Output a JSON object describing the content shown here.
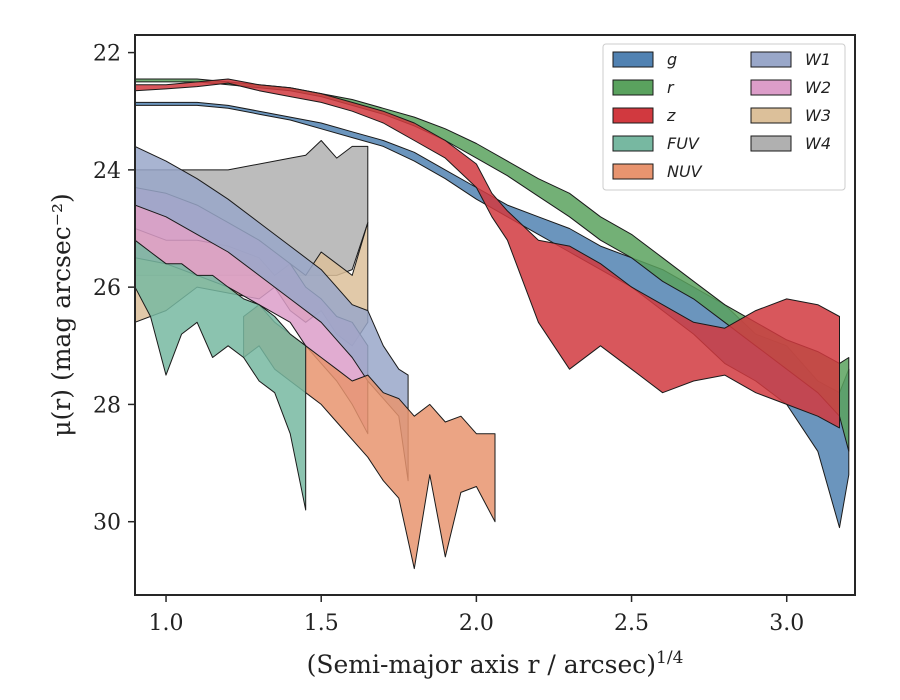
{
  "chart_data": {
    "type": "area",
    "xlabel": "(Semi-major axis r / arcsec)",
    "xlabel_power": "1/4",
    "ylabel": "μ(r) (mag arcsec⁻²)",
    "xlim": [
      0.9,
      3.22
    ],
    "ylim": [
      31.25,
      21.7
    ],
    "y_inverted": true,
    "xticks": [
      1.0,
      1.5,
      2.0,
      2.5,
      3.0
    ],
    "xtick_labels": [
      "1.0",
      "1.5",
      "2.0",
      "2.5",
      "3.0"
    ],
    "yticks": [
      22,
      24,
      26,
      28,
      30
    ],
    "ytick_labels": [
      "22",
      "24",
      "26",
      "28",
      "30"
    ],
    "legend_position": "top-right",
    "legend_columns": 2,
    "series": [
      {
        "name": "W4",
        "color": "#b0b0b0",
        "x": [
          0.9,
          1.0,
          1.2,
          1.4,
          1.45,
          1.5,
          1.55,
          1.6,
          1.65
        ],
        "y_upper": [
          24.0,
          24.0,
          24.0,
          23.8,
          23.75,
          23.5,
          23.8,
          23.6,
          23.6
        ],
        "y_lower": [
          25.8,
          25.8,
          25.8,
          25.8,
          25.8,
          25.8,
          25.8,
          25.7,
          24.9
        ]
      },
      {
        "name": "W3",
        "color": "#dcc09a",
        "x": [
          0.9,
          1.0,
          1.1,
          1.2,
          1.3,
          1.35,
          1.4,
          1.45,
          1.5,
          1.55,
          1.6,
          1.65
        ],
        "y_upper": [
          25.0,
          25.2,
          25.2,
          25.3,
          25.5,
          25.8,
          25.6,
          25.8,
          25.4,
          25.6,
          25.8,
          24.9
        ],
        "y_lower": [
          26.6,
          26.4,
          26.0,
          26.1,
          26.2,
          26.0,
          26.4,
          26.6,
          26.4,
          26.8,
          27.0,
          26.6
        ]
      },
      {
        "name": "W2",
        "color": "#dc9dc9",
        "x": [
          0.9,
          1.0,
          1.1,
          1.2,
          1.3,
          1.4,
          1.45,
          1.5,
          1.55,
          1.6,
          1.65
        ],
        "y_upper": [
          24.3,
          24.4,
          24.6,
          24.9,
          25.2,
          25.6,
          26.0,
          26.2,
          26.5,
          26.6,
          27.0
        ],
        "y_lower": [
          25.5,
          25.6,
          25.8,
          26.0,
          26.3,
          26.6,
          27.0,
          27.3,
          27.6,
          28.0,
          28.5
        ]
      },
      {
        "name": "W1",
        "color": "#99a7c9",
        "x": [
          0.9,
          1.0,
          1.1,
          1.2,
          1.3,
          1.4,
          1.5,
          1.55,
          1.6,
          1.65,
          1.7,
          1.75,
          1.78
        ],
        "y_upper": [
          23.6,
          23.85,
          24.15,
          24.5,
          24.9,
          25.3,
          25.7,
          26.0,
          26.3,
          26.4,
          27.0,
          27.4,
          27.5
        ],
        "y_lower": [
          24.6,
          24.8,
          25.1,
          25.4,
          25.8,
          26.2,
          26.6,
          26.9,
          27.2,
          27.6,
          27.9,
          28.2,
          29.3
        ]
      },
      {
        "name": "NUV",
        "color": "#e8946f",
        "x": [
          1.25,
          1.3,
          1.35,
          1.4,
          1.45,
          1.5,
          1.55,
          1.6,
          1.65,
          1.7,
          1.75,
          1.8,
          1.85,
          1.9,
          1.95,
          2.0,
          2.06
        ],
        "y_upper": [
          26.5,
          26.3,
          26.6,
          26.8,
          27.0,
          27.2,
          27.4,
          27.6,
          27.5,
          27.8,
          27.9,
          28.2,
          28.0,
          28.3,
          28.2,
          28.5,
          28.5
        ],
        "y_lower": [
          27.2,
          27.0,
          27.4,
          27.6,
          27.8,
          28.0,
          28.3,
          28.6,
          28.9,
          29.3,
          29.6,
          30.8,
          29.2,
          30.6,
          29.5,
          29.4,
          30.0
        ]
      },
      {
        "name": "FUV",
        "color": "#77b8a1",
        "x": [
          0.9,
          0.95,
          1.0,
          1.05,
          1.1,
          1.15,
          1.2,
          1.25,
          1.3,
          1.35,
          1.4,
          1.45
        ],
        "y_upper": [
          25.2,
          25.4,
          25.6,
          25.6,
          25.8,
          25.8,
          26.0,
          26.2,
          26.3,
          26.5,
          26.8,
          27.0
        ],
        "y_lower": [
          26.0,
          26.5,
          27.5,
          26.8,
          26.6,
          27.2,
          27.0,
          27.2,
          27.6,
          27.8,
          28.5,
          29.8
        ]
      },
      {
        "name": "g",
        "color": "#5182b2",
        "x": [
          0.9,
          1.0,
          1.1,
          1.2,
          1.3,
          1.4,
          1.5,
          1.6,
          1.7,
          1.8,
          1.9,
          2.0,
          2.1,
          2.2,
          2.3,
          2.4,
          2.5,
          2.6,
          2.7,
          2.8,
          2.9,
          3.0,
          3.1,
          3.17,
          3.2
        ],
        "y_upper": [
          22.85,
          22.85,
          22.85,
          22.9,
          23.0,
          23.1,
          23.2,
          23.35,
          23.5,
          23.7,
          24.0,
          24.3,
          24.6,
          24.8,
          25.0,
          25.3,
          25.5,
          25.7,
          26.0,
          26.3,
          26.8,
          27.0,
          27.6,
          27.8,
          27.4
        ],
        "y_lower": [
          22.9,
          22.9,
          22.9,
          22.95,
          23.05,
          23.15,
          23.3,
          23.45,
          23.6,
          23.85,
          24.15,
          24.5,
          24.8,
          25.1,
          25.4,
          25.7,
          26.0,
          26.4,
          26.8,
          27.3,
          27.6,
          28.0,
          28.8,
          30.1,
          29.2
        ]
      },
      {
        "name": "r",
        "color": "#5aa25e",
        "x": [
          0.9,
          1.0,
          1.1,
          1.2,
          1.3,
          1.4,
          1.5,
          1.6,
          1.7,
          1.8,
          1.9,
          2.0,
          2.1,
          2.2,
          2.3,
          2.4,
          2.5,
          2.6,
          2.7,
          2.8,
          2.9,
          3.0,
          3.1,
          3.17,
          3.2
        ],
        "y_upper": [
          22.45,
          22.45,
          22.45,
          22.5,
          22.55,
          22.6,
          22.7,
          22.8,
          22.95,
          23.1,
          23.3,
          23.55,
          23.85,
          24.15,
          24.4,
          24.8,
          25.1,
          25.5,
          25.9,
          26.3,
          26.6,
          26.9,
          27.1,
          27.3,
          27.2
        ],
        "y_lower": [
          22.5,
          22.5,
          22.5,
          22.55,
          22.6,
          22.65,
          22.75,
          22.9,
          23.05,
          23.25,
          23.5,
          23.8,
          24.1,
          24.45,
          24.8,
          25.2,
          25.5,
          25.9,
          26.2,
          26.6,
          27.0,
          27.4,
          27.8,
          28.2,
          28.8
        ]
      },
      {
        "name": "z",
        "color": "#d1393f",
        "x": [
          0.9,
          1.0,
          1.1,
          1.2,
          1.3,
          1.4,
          1.5,
          1.6,
          1.7,
          1.8,
          1.9,
          2.0,
          2.05,
          2.1,
          2.2,
          2.3,
          2.4,
          2.5,
          2.6,
          2.7,
          2.8,
          2.9,
          3.0,
          3.1,
          3.17
        ],
        "y_upper": [
          22.55,
          22.55,
          22.5,
          22.45,
          22.55,
          22.6,
          22.7,
          22.85,
          23.0,
          23.2,
          23.5,
          23.9,
          24.4,
          24.7,
          25.2,
          25.3,
          25.6,
          26.0,
          26.3,
          26.6,
          26.7,
          26.4,
          26.2,
          26.3,
          26.5
        ],
        "y_lower": [
          22.65,
          22.62,
          22.58,
          22.52,
          22.65,
          22.75,
          22.85,
          23.0,
          23.2,
          23.5,
          23.8,
          24.3,
          24.8,
          25.2,
          26.6,
          27.4,
          27.0,
          27.4,
          27.8,
          27.6,
          27.5,
          27.8,
          28.0,
          28.2,
          28.4
        ]
      }
    ]
  }
}
